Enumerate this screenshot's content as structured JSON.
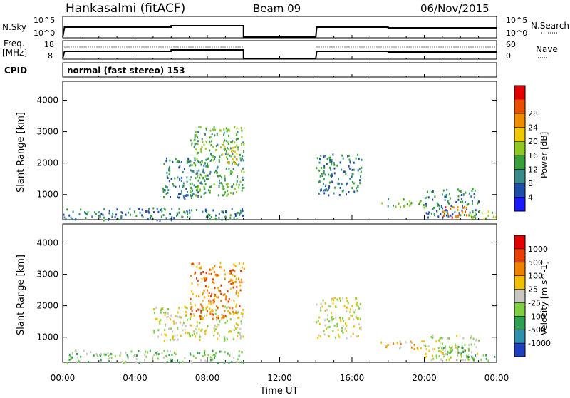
{
  "header": {
    "station": "Hankasalmi (fitACF)",
    "beam": "Beam 09",
    "date": "06/Nov/2015"
  },
  "strips": {
    "nsky_label": "N.Sky",
    "nsky_ticks": [
      "10^5",
      "10^0"
    ],
    "nsearch_label": "N.Search",
    "nsearch_ticks": [
      "10^5",
      "10^0"
    ],
    "freq_label_1": "Freq.",
    "freq_label_2": "[MHz]",
    "freq_ticks": [
      "18",
      "8"
    ],
    "nave_label": "Nave",
    "nave_ticks": [
      "60",
      "0"
    ],
    "cpid_label": "CPID",
    "cpid_text": "normal (fast stereo) 153"
  },
  "chart_data": [
    {
      "type": "heatmap",
      "name": "power",
      "ylabel": "Slant Range [km]",
      "yticks": [
        1000,
        2000,
        3000,
        4000
      ],
      "ylim": [
        200,
        4600
      ],
      "xlim": [
        0,
        24
      ],
      "colorbar": {
        "label": "Power [dB]",
        "ticks": [
          "4",
          "8",
          "12",
          "16",
          "20",
          "24",
          "28"
        ],
        "colors": [
          "#1a1aff",
          "#1f4ea8",
          "#3a8a8a",
          "#38a038",
          "#8fc820",
          "#f0c800",
          "#f08c00",
          "#e85000",
          "#e00000"
        ]
      },
      "regions": [
        {
          "t0": 0,
          "t1": 10,
          "r0": 200,
          "r1": 600,
          "level": 2
        },
        {
          "t0": 5.5,
          "t1": 8.0,
          "r0": 900,
          "r1": 2200,
          "level": 2
        },
        {
          "t0": 7.0,
          "t1": 10.0,
          "r0": 1000,
          "r1": 3200,
          "level": 3
        },
        {
          "t0": 8.8,
          "t1": 9.6,
          "r0": 2000,
          "r1": 2600,
          "level": 5
        },
        {
          "t0": 14.0,
          "t1": 16.5,
          "r0": 1000,
          "r1": 2300,
          "level": 2
        },
        {
          "t0": 17.5,
          "t1": 20.0,
          "r0": 600,
          "r1": 900,
          "level": 3
        },
        {
          "t0": 20.0,
          "t1": 23.0,
          "r0": 300,
          "r1": 1200,
          "level": 2
        },
        {
          "t0": 21.0,
          "t1": 22.5,
          "r0": 300,
          "r1": 700,
          "level": 7
        },
        {
          "t0": 22.0,
          "t1": 24.0,
          "r0": 250,
          "r1": 500,
          "level": 4
        }
      ]
    },
    {
      "type": "heatmap",
      "name": "velocity",
      "ylabel": "Slant Range [km]",
      "yticks": [
        1000,
        2000,
        3000,
        4000
      ],
      "ylim": [
        200,
        4600
      ],
      "xlim": [
        0,
        24
      ],
      "xticks": [
        "00:00",
        "04:00",
        "08:00",
        "12:00",
        "16:00",
        "20:00",
        "00:00"
      ],
      "xlabel": "Time UT",
      "colorbar": {
        "label": "Velocity [m s^-1]",
        "ticks": [
          "1000",
          "500",
          "100",
          "25",
          "-25",
          "-100",
          "-500",
          "-1000"
        ],
        "colors": [
          "#1f3fbf",
          "#2f8fb0",
          "#2fa050",
          "#7fd040",
          "#c8c8c0",
          "#f0c000",
          "#f08000",
          "#e84000",
          "#e00000"
        ]
      },
      "regions": [
        {
          "t0": 0,
          "t1": 10,
          "r0": 200,
          "r1": 600,
          "level": 3
        },
        {
          "t0": 5.0,
          "t1": 10.0,
          "r0": 900,
          "r1": 2000,
          "level": 4
        },
        {
          "t0": 7.0,
          "t1": 10.0,
          "r0": 1600,
          "r1": 3400,
          "level": 6
        },
        {
          "t0": 14.0,
          "t1": 16.5,
          "r0": 1000,
          "r1": 2300,
          "level": 4
        },
        {
          "t0": 17.5,
          "t1": 20.0,
          "r0": 600,
          "r1": 900,
          "level": 5
        },
        {
          "t0": 20.0,
          "t1": 23.0,
          "r0": 300,
          "r1": 1100,
          "level": 4
        },
        {
          "t0": 21.0,
          "t1": 22.5,
          "r0": 300,
          "r1": 800,
          "level": 3
        },
        {
          "t0": 22.5,
          "t1": 24.0,
          "r0": 250,
          "r1": 500,
          "level": 2
        }
      ]
    }
  ]
}
